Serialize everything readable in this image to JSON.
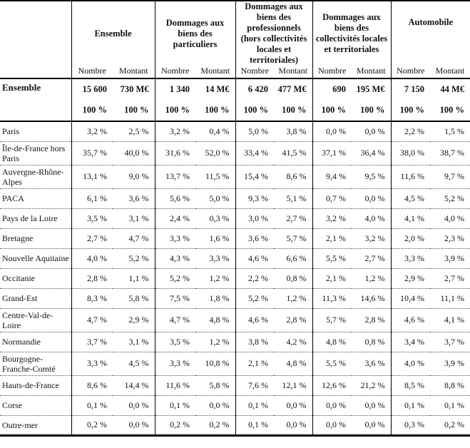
{
  "table": {
    "corner_label": "",
    "columns": [
      {
        "label": "Ensemble"
      },
      {
        "label": "Dommages aux biens des particuliers"
      },
      {
        "label": "Dommages aux biens des professionnels (hors collectivités locales et territoriales)"
      },
      {
        "label": "Dommages aux biens des collectivités locales et territoriales"
      },
      {
        "label": "Automobile"
      }
    ],
    "sub_columns": [
      "Nombre",
      "Montant"
    ],
    "totals": {
      "label": "Ensemble",
      "values": [
        "15 600",
        "730 M€",
        "1 340",
        "14 M€",
        "6 420",
        "477 M€",
        "690",
        "195 M€",
        "7 150",
        "44 M€"
      ],
      "percent": "100 %"
    },
    "rows": [
      {
        "label": "Paris",
        "values": [
          "3,2 %",
          "2,5 %",
          "3,2 %",
          "0,4 %",
          "5,0 %",
          "3,8 %",
          "0,0 %",
          "0,0 %",
          "2,2 %",
          "1,5 %"
        ]
      },
      {
        "label": "Île-de-France hors Paris",
        "values": [
          "35,7 %",
          "40,0 %",
          "31,6 %",
          "52,0 %",
          "33,4 %",
          "41,5 %",
          "37,1 %",
          "36,4 %",
          "38,0 %",
          "38,7 %"
        ]
      },
      {
        "label": "Auvergne-Rhône-Alpes",
        "values": [
          "13,1 %",
          "9,0 %",
          "13,7 %",
          "11,5 %",
          "15,4 %",
          "8,6 %",
          "9,4 %",
          "9,5 %",
          "11,6 %",
          "9,7 %"
        ]
      },
      {
        "label": "PACA",
        "values": [
          "6,1 %",
          "3,6 %",
          "5,6 %",
          "5,0 %",
          "9,3 %",
          "5,1 %",
          "0,7 %",
          "0,0 %",
          "4,5 %",
          "5,2 %"
        ]
      },
      {
        "label": "Pays de la Loire",
        "values": [
          "3,5 %",
          "3,1 %",
          "2,4 %",
          "0,3 %",
          "3,0 %",
          "2,7 %",
          "3,2 %",
          "4,0 %",
          "4,1 %",
          "4,0 %"
        ]
      },
      {
        "label": "Bretagne",
        "values": [
          "2,7 %",
          "4,7 %",
          "3,3 %",
          "1,6 %",
          "3,6 %",
          "5,7 %",
          "2,1 %",
          "3,2 %",
          "2,0 %",
          "2,3 %"
        ]
      },
      {
        "label": "Nouvelle Aquitaine",
        "values": [
          "4,0 %",
          "5,2 %",
          "4,3 %",
          "3,3 %",
          "4,6 %",
          "6,6 %",
          "5,5 %",
          "2,7 %",
          "3,3 %",
          "3,9 %"
        ]
      },
      {
        "label": "Occitanie",
        "values": [
          "2,8 %",
          "1,1 %",
          "5,2 %",
          "1,2 %",
          "2,2 %",
          "0,8 %",
          "2,1 %",
          "1,2 %",
          "2,9 %",
          "2,7 %"
        ]
      },
      {
        "label": "Grand-Est",
        "values": [
          "8,3 %",
          "5,8 %",
          "7,5 %",
          "1,8 %",
          "5,2 %",
          "1,2 %",
          "11,3 %",
          "14,6 %",
          "10,4 %",
          "11,1 %"
        ]
      },
      {
        "label": "Centre-Val-de-Loire",
        "values": [
          "4,7 %",
          "2,9 %",
          "4,7 %",
          "4,8 %",
          "4,6 %",
          "2,8 %",
          "5,7 %",
          "2,8 %",
          "4,6 %",
          "4,1 %"
        ]
      },
      {
        "label": "Normandie",
        "values": [
          "3,7 %",
          "3,1 %",
          "3,5 %",
          "1,2 %",
          "3,8 %",
          "4,2 %",
          "4,8 %",
          "0,8 %",
          "3,4 %",
          "3,7 %"
        ]
      },
      {
        "label": "Bourgogne-Franche-Comté",
        "values": [
          "3,3 %",
          "4,5 %",
          "3,3 %",
          "10,8 %",
          "2,1 %",
          "4,8 %",
          "5,5 %",
          "3,6 %",
          "4,0 %",
          "3,9 %"
        ]
      },
      {
        "label": "Hauts-de-France",
        "values": [
          "8,6 %",
          "14,4 %",
          "11,6 %",
          "5,8 %",
          "7,6 %",
          "12,1 %",
          "12,6 %",
          "21,2 %",
          "8,5 %",
          "8,8 %"
        ]
      },
      {
        "label": "Corse",
        "values": [
          "0,1 %",
          "0,0 %",
          "0,1 %",
          "0,0 %",
          "0,1 %",
          "0,0 %",
          "0,0 %",
          "0,0 %",
          "0,1 %",
          "0,1 %"
        ]
      },
      {
        "label": "Outre-mer",
        "values": [
          "0,2 %",
          "0,0 %",
          "0,2 %",
          "0,2 %",
          "0,1 %",
          "0,0 %",
          "0,0 %",
          "0,0 %",
          "0,3 %",
          "0,2 %"
        ]
      }
    ]
  }
}
